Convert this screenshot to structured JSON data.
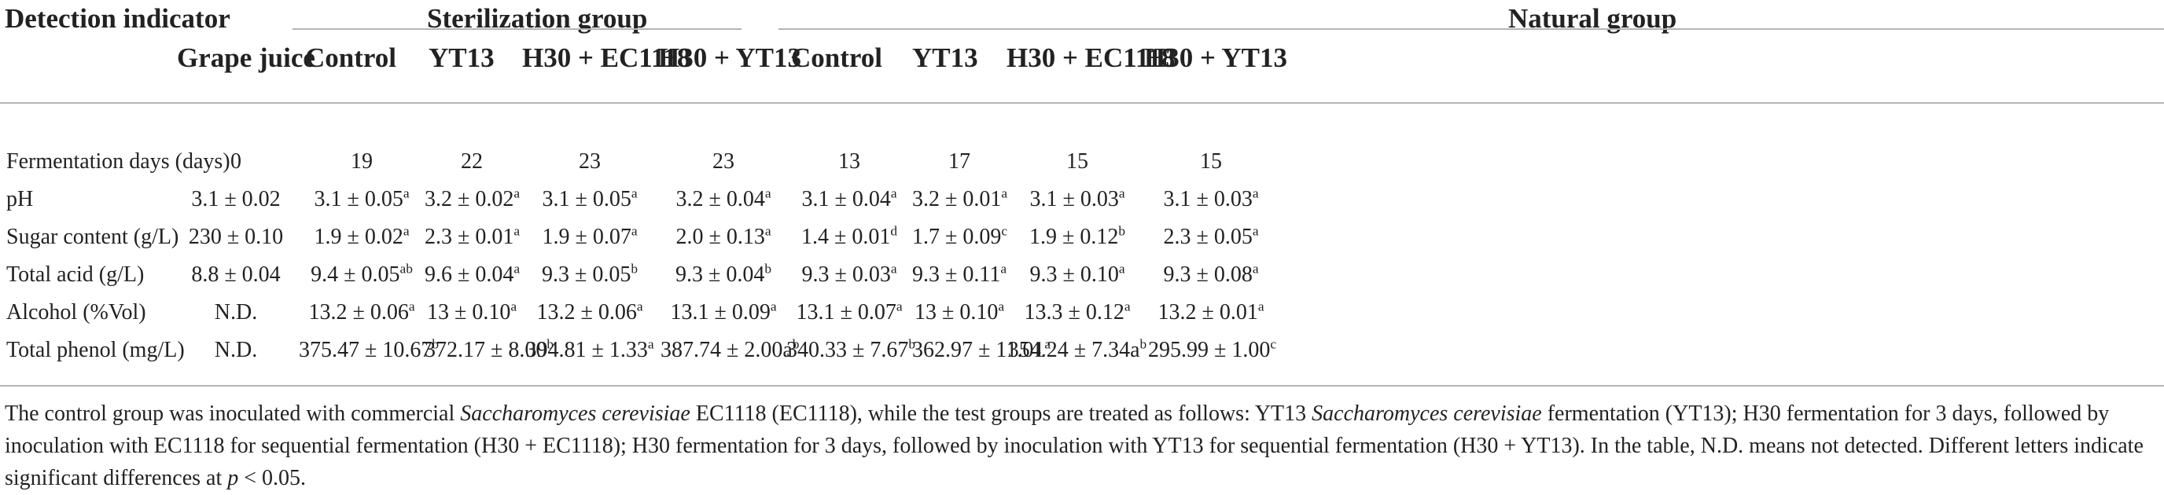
{
  "header": {
    "indicator_label": "Detection indicator",
    "sterilization_group": "Sterilization group",
    "natural_group": "Natural group"
  },
  "columns": [
    "Grape juice",
    "Control",
    "YT13",
    "H30 + EC1118",
    "H30 + YT13",
    "Control",
    "YT13",
    "H30 + EC1118",
    "H30 + YT13"
  ],
  "rows": [
    {
      "label": "Fermentation days (days)",
      "cells": [
        {
          "v": "0",
          "s": ""
        },
        {
          "v": "19",
          "s": ""
        },
        {
          "v": "22",
          "s": ""
        },
        {
          "v": "23",
          "s": ""
        },
        {
          "v": "23",
          "s": ""
        },
        {
          "v": "13",
          "s": ""
        },
        {
          "v": "17",
          "s": ""
        },
        {
          "v": "15",
          "s": ""
        },
        {
          "v": "15",
          "s": ""
        }
      ]
    },
    {
      "label": "pH",
      "cells": [
        {
          "v": "3.1 ± 0.02",
          "s": ""
        },
        {
          "v": "3.1 ± 0.05",
          "s": "a"
        },
        {
          "v": "3.2 ± 0.02",
          "s": "a"
        },
        {
          "v": "3.1 ± 0.05",
          "s": "a"
        },
        {
          "v": "3.2 ± 0.04",
          "s": "a"
        },
        {
          "v": "3.1 ± 0.04",
          "s": "a"
        },
        {
          "v": "3.2 ± 0.01",
          "s": "a"
        },
        {
          "v": "3.1 ± 0.03",
          "s": "a"
        },
        {
          "v": "3.1 ± 0.03",
          "s": "a"
        }
      ]
    },
    {
      "label": "Sugar content (g/L)",
      "cells": [
        {
          "v": "230 ± 0.10",
          "s": ""
        },
        {
          "v": "1.9 ± 0.02",
          "s": "a"
        },
        {
          "v": "2.3 ± 0.01",
          "s": "a"
        },
        {
          "v": "1.9 ± 0.07",
          "s": "a"
        },
        {
          "v": "2.0 ± 0.13",
          "s": "a"
        },
        {
          "v": "1.4 ± 0.01",
          "s": "d"
        },
        {
          "v": "1.7 ± 0.09",
          "s": "c"
        },
        {
          "v": "1.9 ± 0.12",
          "s": "b"
        },
        {
          "v": "2.3 ± 0.05",
          "s": "a"
        }
      ]
    },
    {
      "label": "Total acid (g/L)",
      "cells": [
        {
          "v": "8.8 ± 0.04",
          "s": ""
        },
        {
          "v": "9.4 ± 0.05",
          "s": "ab"
        },
        {
          "v": "9.6 ± 0.04",
          "s": "a"
        },
        {
          "v": "9.3 ± 0.05",
          "s": "b"
        },
        {
          "v": "9.3 ± 0.04",
          "s": "b"
        },
        {
          "v": "9.3 ± 0.03",
          "s": "a"
        },
        {
          "v": "9.3 ± 0.11",
          "s": "a"
        },
        {
          "v": "9.3 ± 0.10",
          "s": "a"
        },
        {
          "v": "9.3 ± 0.08",
          "s": "a"
        }
      ]
    },
    {
      "label": "Alcohol (%Vol)",
      "cells": [
        {
          "v": "N.D.",
          "s": ""
        },
        {
          "v": "13.2 ± 0.06",
          "s": "a"
        },
        {
          "v": "13 ± 0.10",
          "s": "a"
        },
        {
          "v": "13.2 ± 0.06",
          "s": "a"
        },
        {
          "v": "13.1 ± 0.09",
          "s": "a"
        },
        {
          "v": "13.1 ± 0.07",
          "s": "a"
        },
        {
          "v": "13 ± 0.10",
          "s": "a"
        },
        {
          "v": "13.3 ± 0.12",
          "s": "a"
        },
        {
          "v": "13.2 ± 0.01",
          "s": "a"
        }
      ]
    },
    {
      "label": "Total phenol (mg/L)",
      "cells": [
        {
          "v": "N.D.",
          "s": ""
        },
        {
          "v": "375.47 ± 10.67",
          "s": "b"
        },
        {
          "v": "372.17 ± 8.00",
          "s": "b"
        },
        {
          "v": "394.81 ± 1.33",
          "s": "a"
        },
        {
          "v": "387.74 ± 2.00a",
          "s": "b"
        },
        {
          "v": "340.33 ± 7.67",
          "s": "b"
        },
        {
          "v": "362.97 ± 11.01",
          "s": "a"
        },
        {
          "v": "354.24 ± 7.34a",
          "s": "b"
        },
        {
          "v": "295.99 ± 1.00",
          "s": "c"
        }
      ]
    }
  ],
  "footnote": {
    "t1": "The control group was inoculated with commercial ",
    "i1": "Saccharomyces cerevisiae",
    "t2": " EC1118 (EC1118), while the test groups are treated as follows: YT13 ",
    "i2": "Saccharomyces cerevisiae",
    "t3": " fermentation (YT13); H30 fermentation for 3 days, followed by inoculation with EC1118 for sequential fermentation (H30 + EC1118); H30 fermentation for 3 days, followed by inoculation with YT13 for sequential fermentation (H30 + YT13). In the table, N.D. means not detected. Different letters indicate significant differences at ",
    "i3": "p",
    "t4": " < 0.05."
  }
}
